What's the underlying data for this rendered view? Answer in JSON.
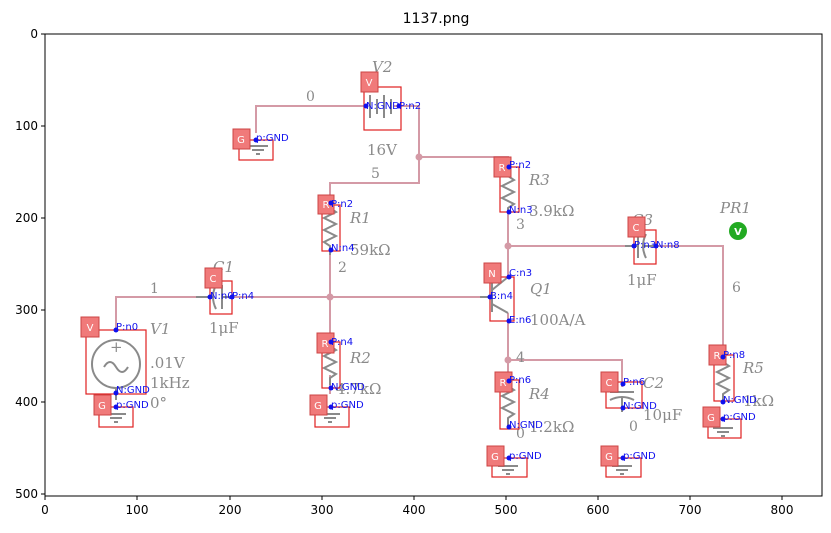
{
  "figure": {
    "title": "1137.png",
    "x_ticks": [
      "0",
      "100",
      "200",
      "300",
      "400",
      "500",
      "600",
      "700",
      "800"
    ],
    "y_ticks": [
      "0",
      "100",
      "200",
      "300",
      "400",
      "500"
    ]
  },
  "nets": [
    "0",
    "5",
    "3",
    "1",
    "2",
    "6",
    "4",
    "0",
    "0"
  ],
  "components": [
    {
      "name": "V2",
      "value": "16V",
      "tag": "V",
      "pins": [
        "N:GND",
        "P:n2"
      ]
    },
    {
      "name": "R1",
      "value": "59kΩ",
      "tag": "R",
      "pins": [
        "P:n2",
        "N:n4"
      ]
    },
    {
      "name": "R3",
      "value": "3.9kΩ",
      "tag": "R",
      "pins": [
        "P:n2",
        "N:n3"
      ]
    },
    {
      "name": "C3",
      "value": "1μF",
      "tag": "C",
      "pins": [
        "P:n3",
        "N:n8"
      ]
    },
    {
      "name": "PR1",
      "value": "",
      "tag": "V",
      "pins": []
    },
    {
      "name": "C1",
      "value": "1μF",
      "tag": "C",
      "pins": [
        "N:n0",
        "P:n4"
      ]
    },
    {
      "name": "Q1",
      "value": "100A/A",
      "tag": "N",
      "pins": [
        "C:n3",
        "B:n4",
        "E:n6"
      ]
    },
    {
      "name": "V1",
      "value": ".01V",
      "value2": "1kHz",
      "value3": "0°",
      "tag": "V",
      "pins": [
        "P:n0",
        "N:GND"
      ]
    },
    {
      "name": "R2",
      "value": "4.7kΩ",
      "tag": "R",
      "pins": [
        "P:n4",
        "N:GND"
      ]
    },
    {
      "name": "R4",
      "value": "1.2kΩ",
      "tag": "R",
      "pins": [
        "P:n6",
        "N:GND"
      ]
    },
    {
      "name": "C2",
      "value": "10μF",
      "tag": "C",
      "pins": [
        "P:n6",
        "N:GND"
      ]
    },
    {
      "name": "R5",
      "value": "1kΩ",
      "tag": "R",
      "pins": [
        "P:n8",
        "N:GND"
      ]
    }
  ],
  "grounds": [
    {
      "tag": "G",
      "pin": "p:GND"
    },
    {
      "tag": "G",
      "pin": "p:GND"
    },
    {
      "tag": "G",
      "pin": "p:GND"
    },
    {
      "tag": "G",
      "pin": "p:GND"
    },
    {
      "tag": "G",
      "pin": "p:GND"
    },
    {
      "tag": "G",
      "pin": "p:GND"
    }
  ],
  "colors": {
    "wire": "#d49aa6",
    "component": "#8a8a8a",
    "tag": "#f07a7a",
    "pin": "#1010ee",
    "probe": "#22aa22"
  }
}
